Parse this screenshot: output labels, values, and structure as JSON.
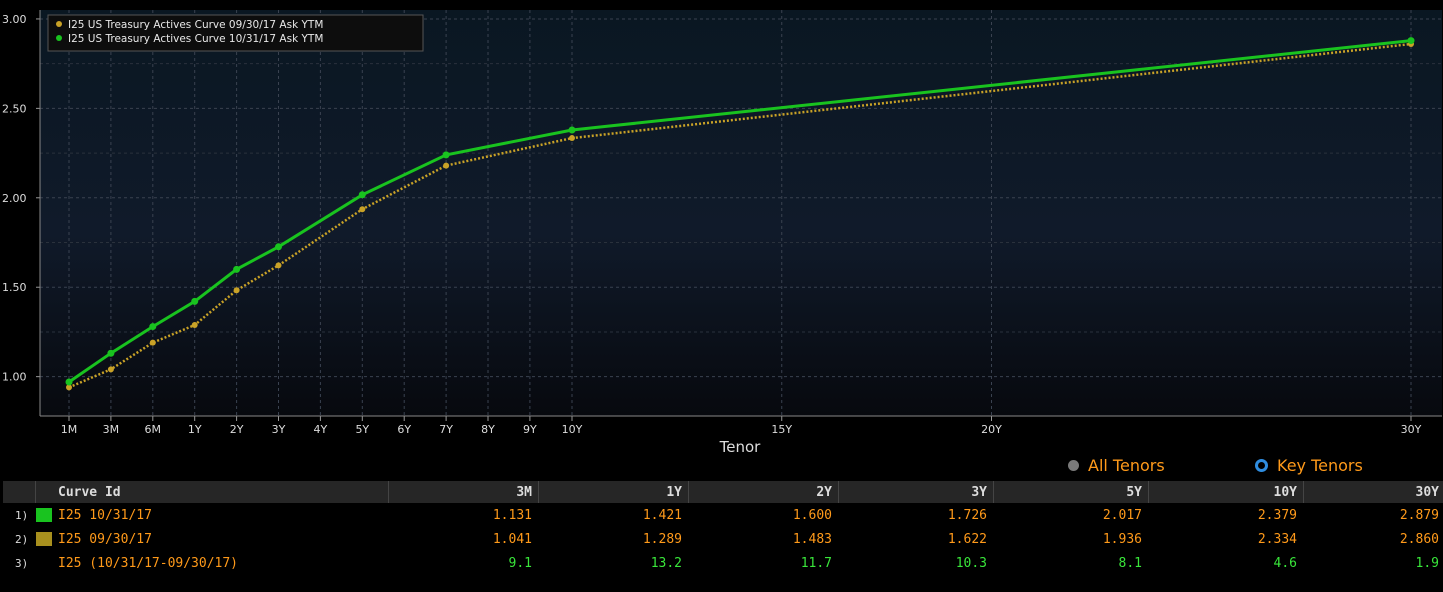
{
  "chart_data": {
    "type": "line",
    "xlabel": "Tenor",
    "x_ticks": [
      {
        "label": "1M",
        "years": 0.0833
      },
      {
        "label": "3M",
        "years": 0.25
      },
      {
        "label": "6M",
        "years": 0.5
      },
      {
        "label": "1Y",
        "years": 1
      },
      {
        "label": "2Y",
        "years": 2
      },
      {
        "label": "3Y",
        "years": 3
      },
      {
        "label": "4Y",
        "years": 4
      },
      {
        "label": "5Y",
        "years": 5
      },
      {
        "label": "6Y",
        "years": 6
      },
      {
        "label": "7Y",
        "years": 7
      },
      {
        "label": "8Y",
        "years": 8
      },
      {
        "label": "9Y",
        "years": 9
      },
      {
        "label": "10Y",
        "years": 10
      },
      {
        "label": "15Y",
        "years": 15
      },
      {
        "label": "20Y",
        "years": 20
      },
      {
        "label": "30Y",
        "years": 30
      }
    ],
    "y_ticks": [
      "1.00",
      "1.50",
      "2.00",
      "2.50",
      "3.00"
    ],
    "ylim": [
      0.78,
      3.05
    ],
    "grid": true,
    "legend_position": "top-left",
    "series": [
      {
        "name": "I25 US Treasury Actives Curve 09/30/17 Ask YTM",
        "color": "#c9a227",
        "style": "dotted",
        "points": [
          [
            0.0833,
            0.94
          ],
          [
            0.25,
            1.041
          ],
          [
            0.5,
            1.19
          ],
          [
            1,
            1.289
          ],
          [
            2,
            1.483
          ],
          [
            3,
            1.622
          ],
          [
            5,
            1.936
          ],
          [
            7,
            2.18
          ],
          [
            10,
            2.334
          ],
          [
            30,
            2.86
          ]
        ]
      },
      {
        "name": "I25 US Treasury Actives Curve 10/31/17 Ask YTM",
        "color": "#19c31f",
        "style": "solid",
        "points": [
          [
            0.0833,
            0.97
          ],
          [
            0.25,
            1.131
          ],
          [
            0.5,
            1.28
          ],
          [
            1,
            1.421
          ],
          [
            2,
            1.6
          ],
          [
            3,
            1.726
          ],
          [
            5,
            2.017
          ],
          [
            7,
            2.24
          ],
          [
            10,
            2.379
          ],
          [
            30,
            2.879
          ]
        ]
      }
    ]
  },
  "tenor_toggle": {
    "all_label": "All Tenors",
    "key_label": "Key Tenors"
  },
  "table": {
    "header": {
      "curve_id": "Curve Id",
      "cols": [
        "3M",
        "1Y",
        "2Y",
        "3Y",
        "5Y",
        "10Y",
        "30Y"
      ]
    },
    "rows": [
      {
        "index": "1)",
        "name": "I25 10/31/17",
        "swatch": "#19c31f",
        "values": [
          "1.131",
          "1.421",
          "1.600",
          "1.726",
          "2.017",
          "2.379",
          "2.879"
        ]
      },
      {
        "index": "2)",
        "name": "I25 09/30/17",
        "swatch": "#a8901e",
        "values": [
          "1.041",
          "1.289",
          "1.483",
          "1.622",
          "1.936",
          "2.334",
          "2.860"
        ]
      },
      {
        "index": "3)",
        "name": "I25 (10/31/17-09/30/17)",
        "swatch": "",
        "values": [
          "9.1",
          "13.2",
          "11.7",
          "10.3",
          "8.1",
          "4.6",
          "1.9"
        ]
      }
    ]
  }
}
